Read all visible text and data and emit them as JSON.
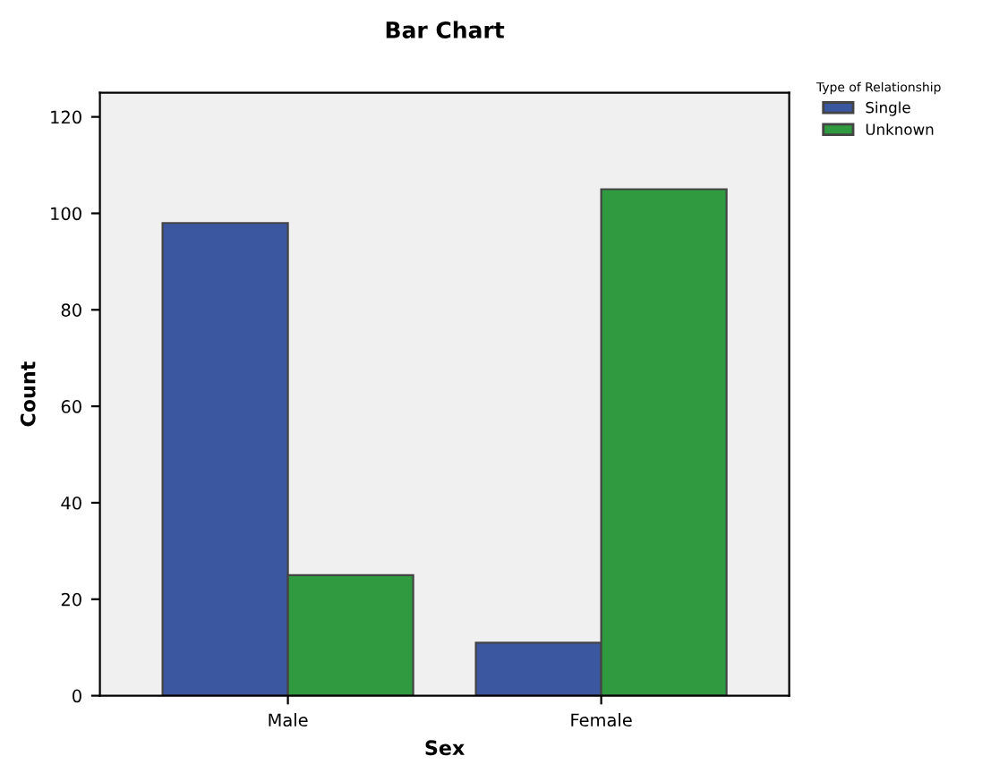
{
  "chart_data": {
    "type": "bar",
    "title": "Bar Chart",
    "xlabel": "Sex",
    "ylabel": "Count",
    "legend_title": "Type of Relationship",
    "categories": [
      "Male",
      "Female"
    ],
    "series": [
      {
        "name": "Single",
        "color": "#3b57a0",
        "values": [
          98,
          11
        ]
      },
      {
        "name": "Unknown",
        "color": "#2f9a3f",
        "values": [
          25,
          105
        ]
      }
    ],
    "ylim": [
      0,
      125
    ],
    "yticks": [
      0,
      20,
      40,
      60,
      80,
      100,
      120
    ],
    "grid": false,
    "legend": "top right"
  }
}
